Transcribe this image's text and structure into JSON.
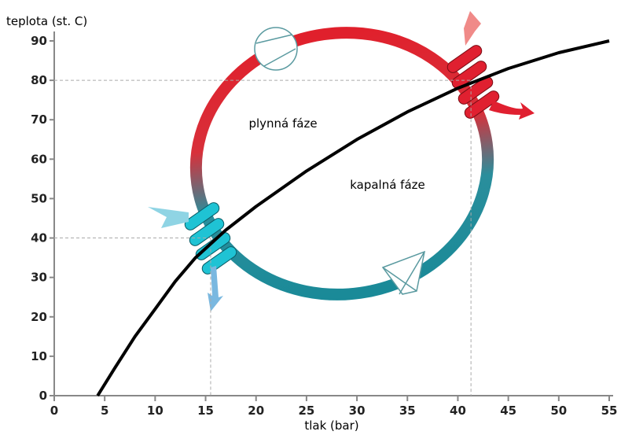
{
  "chart_data": {
    "type": "line",
    "x_label": "tlak (bar)",
    "y_label": "teplota (st. C)",
    "x": [
      4.3,
      6,
      8,
      10,
      12,
      14,
      17,
      20,
      25,
      30,
      35,
      40,
      45,
      50,
      55
    ],
    "values": [
      0,
      7,
      15,
      22,
      29,
      35,
      42,
      48,
      57,
      65,
      72,
      78,
      83,
      87,
      90
    ],
    "color": "#000000",
    "xlim": [
      0,
      55
    ],
    "xticks": [
      0,
      5,
      10,
      15,
      20,
      25,
      30,
      35,
      40,
      45,
      50,
      55
    ],
    "ylim": [
      0,
      90
    ],
    "yticks": [
      0,
      10,
      20,
      30,
      40,
      50,
      60,
      70,
      80,
      90
    ],
    "reference_points": [
      {
        "x": 15.5,
        "y": 40
      },
      {
        "x": 41.3,
        "y": 80
      }
    ],
    "annotations": [
      "plynná fáze",
      "kapalná fáze"
    ]
  }
}
